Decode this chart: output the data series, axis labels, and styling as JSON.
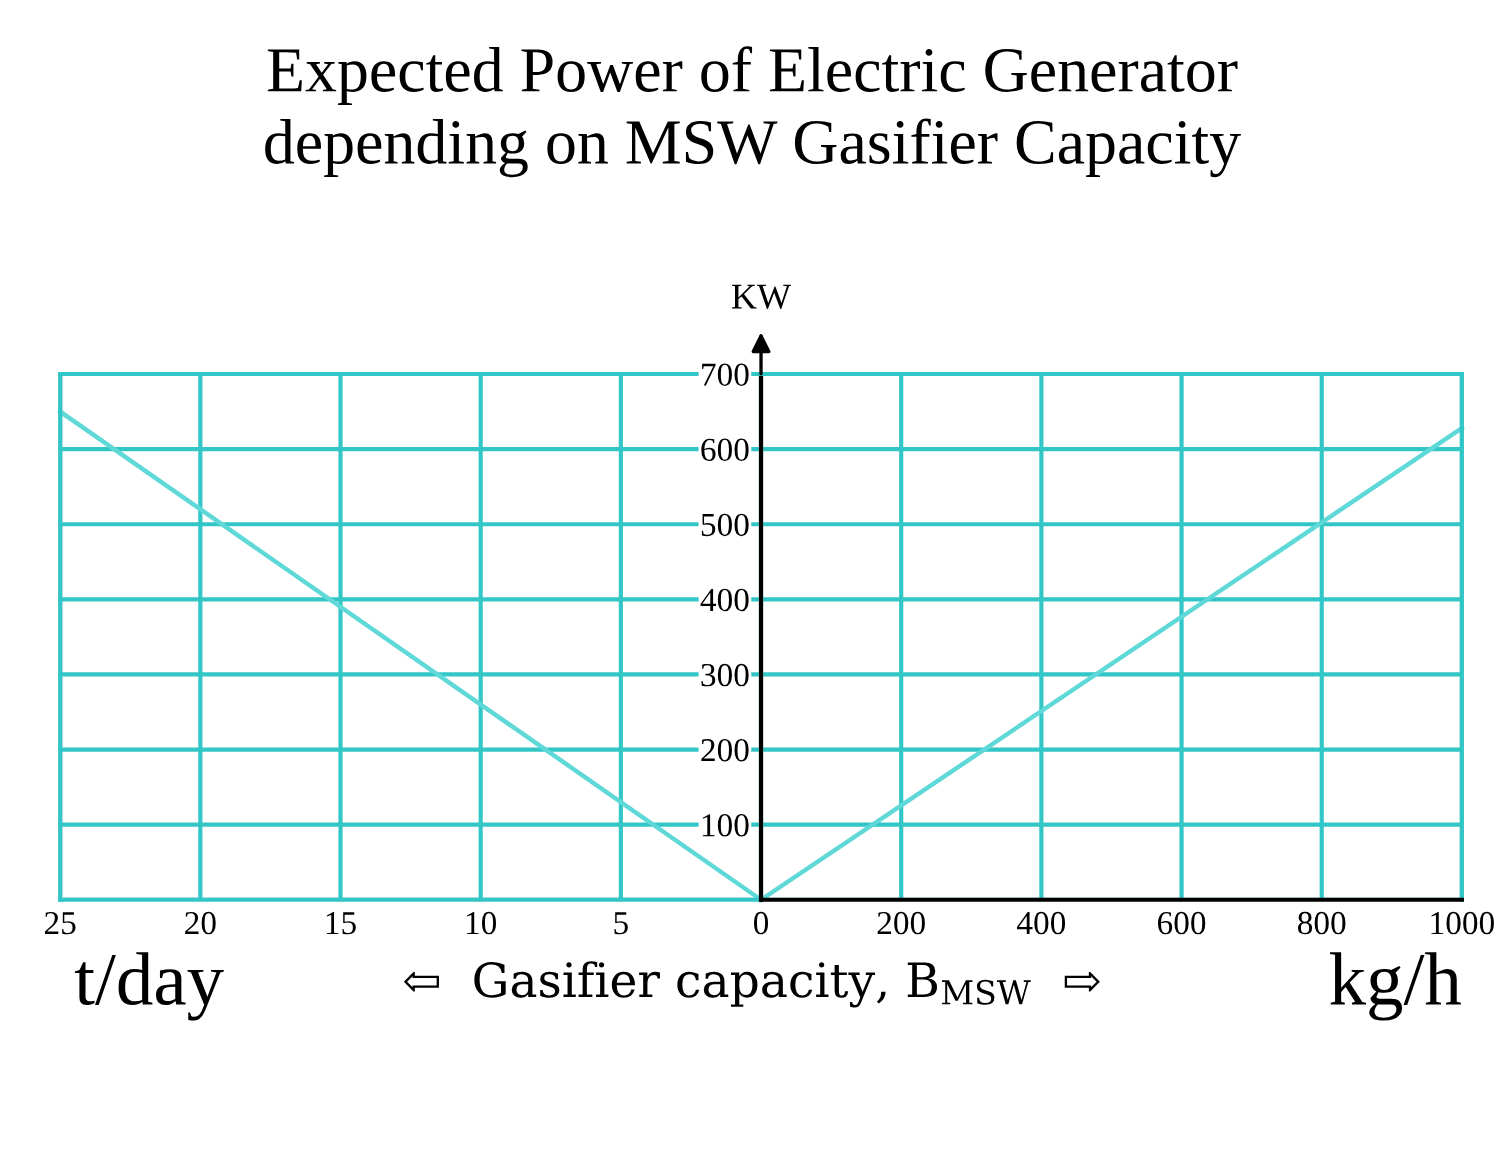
{
  "chart_data": [
    {
      "type": "line",
      "title": "Expected Power of Electric Generator\ndepending on MSW Gasifier Capacity",
      "xlabel": "t/day",
      "x": [
        25,
        0
      ],
      "series": [
        {
          "color": "#5fd8d8",
          "values": [
            650,
            0
          ]
        }
      ],
      "xlim": [
        25,
        0
      ],
      "xticks": [
        25,
        20,
        15,
        10,
        5,
        {
          "value": 0,
          "label": null
        }
      ],
      "ylim": [
        0,
        700
      ],
      "yticks": [
        0,
        100,
        200,
        300,
        400,
        500,
        600,
        700
      ],
      "grid": true,
      "tick_labels": "x",
      "marker": "none",
      "line_style": "solid"
    },
    {
      "type": "line",
      "ylabel": "KW",
      "xlabel": "kg/h",
      "annotations": [
        "⇦  Gasifier capacity, B$_{MSW}$  ⇨"
      ],
      "x": [
        0,
        1000
      ],
      "series": [
        {
          "color": "#5fd8d8",
          "values": [
            0,
            628
          ]
        }
      ],
      "xlim": [
        0,
        1000
      ],
      "xticks": [
        0,
        200,
        400,
        600,
        800,
        1000
      ],
      "ylim": [
        0,
        700
      ],
      "yticks": [
        {
          "value": 0,
          "label": null
        },
        100,
        200,
        300,
        400,
        500,
        600,
        700
      ],
      "grid": true,
      "marker": "none",
      "line_style": "solid"
    }
  ]
}
